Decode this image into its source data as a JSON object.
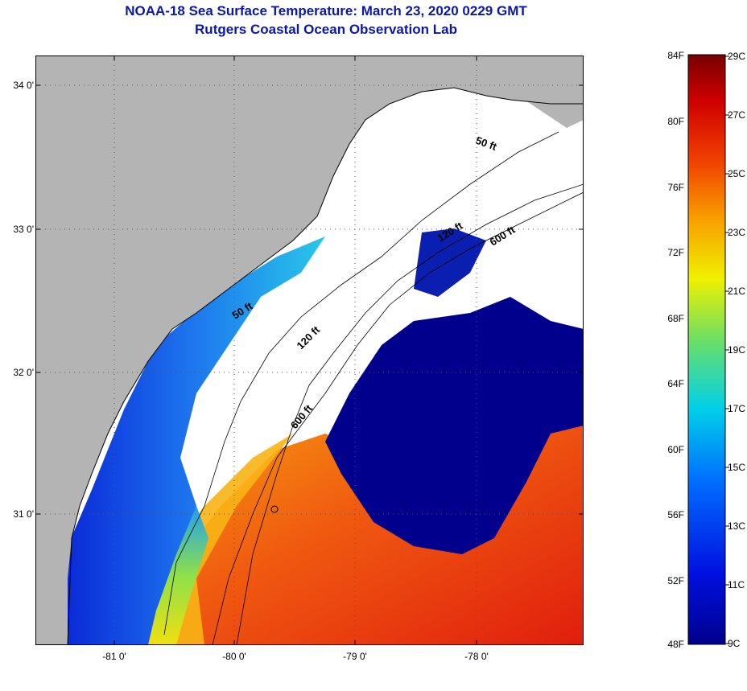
{
  "title": "NOAA-18 Sea Surface Temperature:  March 23, 2020 0229 GMT",
  "subtitle": "Rutgers Coastal Ocean Observation Lab",
  "map": {
    "lat_labels": [
      "34 0'",
      "33 0'",
      "32 0'",
      "31 0'"
    ],
    "lon_labels": [
      "-81 0'",
      "-80 0'",
      "-79 0'",
      "-78 0'"
    ],
    "contours": [
      {
        "label": "50 ft"
      },
      {
        "label": "50 ft"
      },
      {
        "label": "120 ft"
      },
      {
        "label": "120 ft"
      },
      {
        "label": "600 ft"
      },
      {
        "label": "600 ft"
      }
    ],
    "colors": {
      "land": "#b4b4b4",
      "cloud": "#ffffff",
      "cold": "#00008c",
      "warm": "#e82a0f"
    }
  },
  "colorbar": {
    "f_labels": [
      "84F",
      "80F",
      "76F",
      "72F",
      "68F",
      "64F",
      "60F",
      "56F",
      "52F",
      "48F"
    ],
    "c_labels": [
      "29C",
      "27C",
      "25C",
      "23C",
      "21C",
      "19C",
      "17C",
      "15C",
      "13C",
      "11C",
      "9C"
    ]
  }
}
